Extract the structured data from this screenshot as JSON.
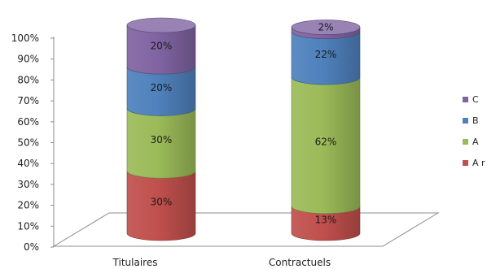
{
  "chart_data": {
    "type": "bar",
    "stacked": true,
    "percent_stacked": true,
    "style": "3d-cylinder",
    "categories": [
      "Titulaires",
      "Contractuels"
    ],
    "yticks": [
      "0%",
      "10%",
      "20%",
      "30%",
      "40%",
      "50%",
      "60%",
      "70%",
      "80%",
      "90%",
      "100%"
    ],
    "ylim": [
      0,
      100
    ],
    "grid": false,
    "legend_position": "right",
    "series": [
      {
        "name": "A r",
        "color": "#c0504d",
        "values": [
          30,
          13
        ],
        "labels": [
          "30%",
          "13%"
        ]
      },
      {
        "name": "A",
        "color": "#9bbb59",
        "values": [
          30,
          62
        ],
        "labels": [
          "30%",
          "62%"
        ]
      },
      {
        "name": "B",
        "color": "#4f81bd",
        "values": [
          20,
          22
        ],
        "labels": [
          "20%",
          "22%"
        ]
      },
      {
        "name": "C",
        "color": "#8064a2",
        "values": [
          20,
          2
        ],
        "labels": [
          "20%",
          "2%"
        ]
      }
    ]
  }
}
